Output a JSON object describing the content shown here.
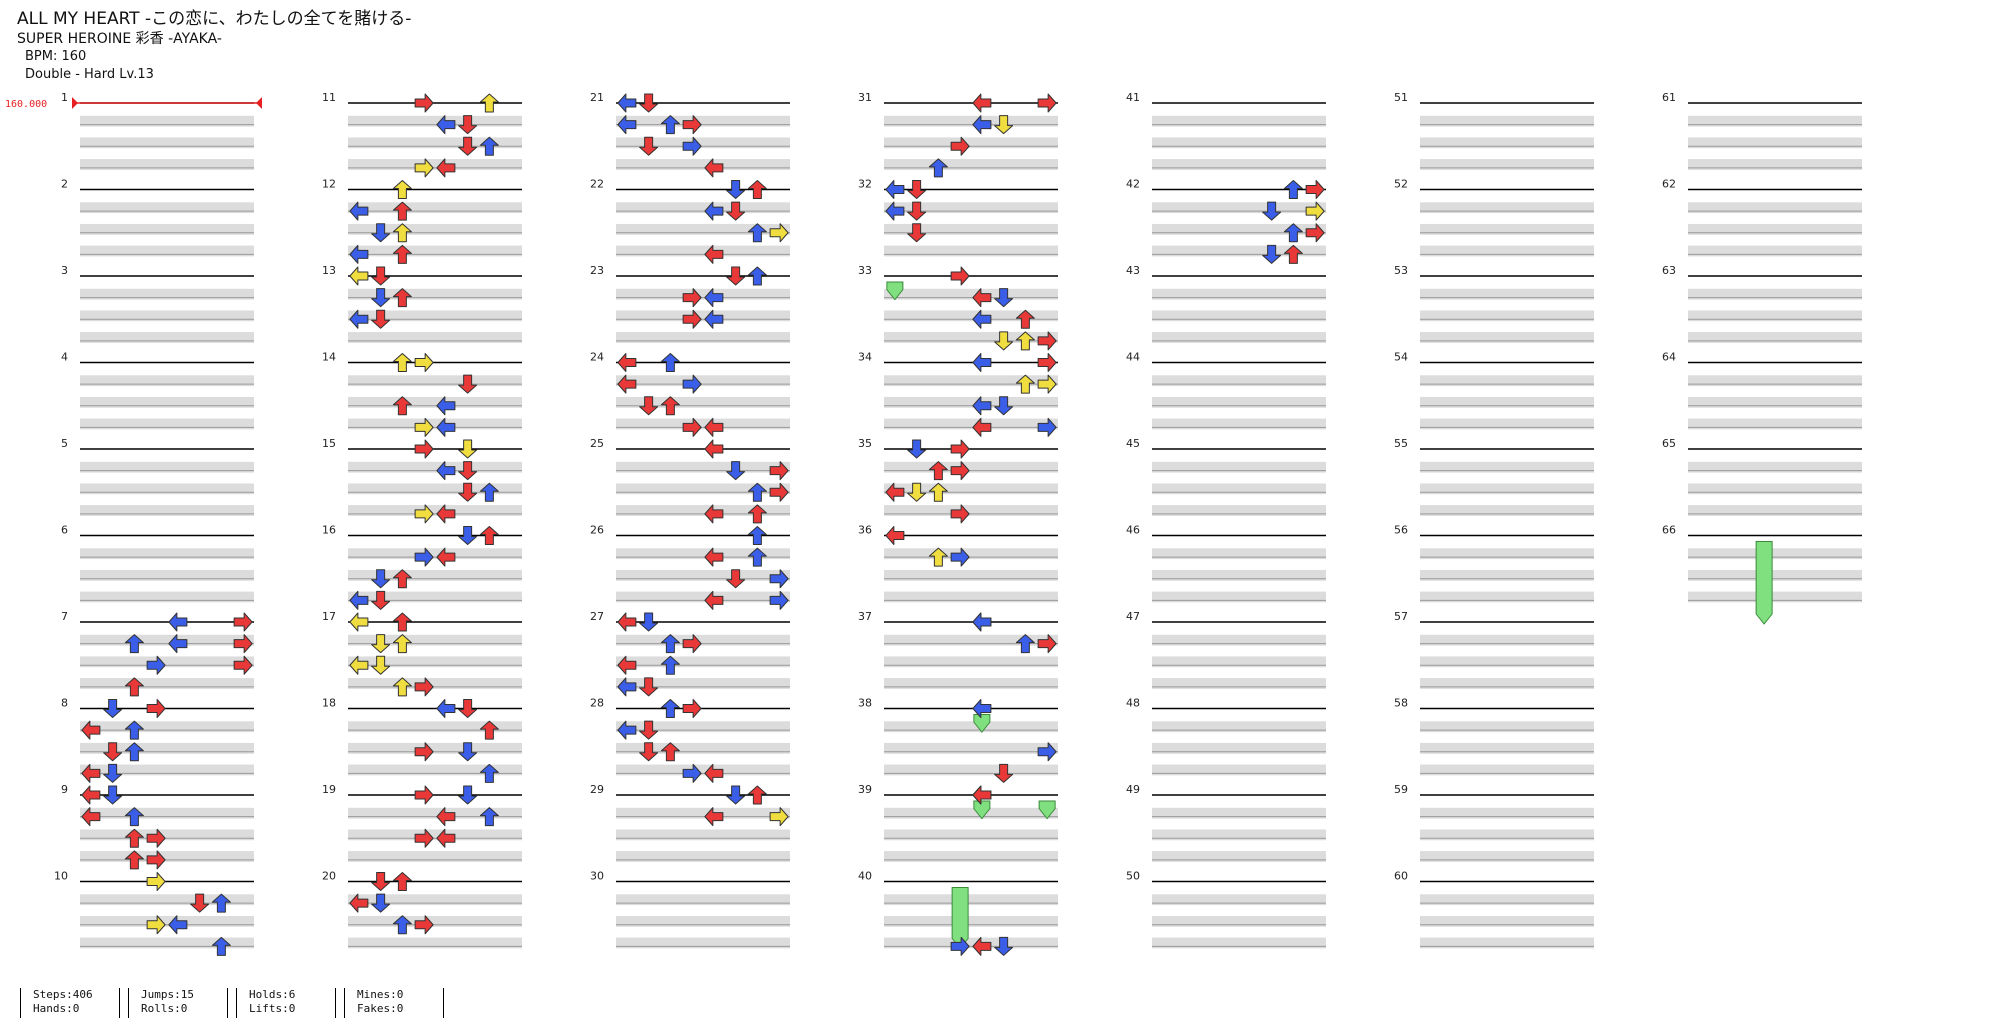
{
  "song": {
    "title": "ALL MY HEART -この恋に、わたしの全てを賭ける-",
    "artist": "SUPER HEROINE 彩香 -AYAKA-",
    "bpm_text": "BPM: 160",
    "difficulty_text": "Double - Hard  Lv.13"
  },
  "bpm_marker": "160.000",
  "measure_numbers": [
    "1",
    "2",
    "3",
    "4",
    "5",
    "6",
    "7",
    "8",
    "9",
    "10",
    "11",
    "12",
    "13",
    "14",
    "15",
    "16",
    "17",
    "18",
    "19",
    "20",
    "21",
    "22",
    "23",
    "24",
    "25",
    "26",
    "27",
    "28",
    "29",
    "30",
    "31",
    "32",
    "33",
    "34",
    "35",
    "36",
    "37",
    "38",
    "39",
    "40",
    "41",
    "42",
    "43",
    "44",
    "45",
    "46",
    "47",
    "48",
    "49",
    "50",
    "51",
    "52",
    "53",
    "54",
    "55",
    "56",
    "57",
    "58",
    "59",
    "60",
    "61",
    "62",
    "63",
    "64",
    "65",
    "66"
  ],
  "colors": {
    "quarter": "#e83838",
    "eighth": "#3a5ee8",
    "sixteenth": "#f0de40",
    "hold": "#80e080",
    "bar_fill": "#dcdcdc",
    "bpm": "#e62020"
  },
  "stats": [
    {
      "top": "Steps:406",
      "bottom": "Hands:0"
    },
    {
      "top": "Jumps:15",
      "bottom": "Rolls:0"
    },
    {
      "top": "Holds:6",
      "bottom": "Lifts:0"
    },
    {
      "top": "Mines:0",
      "bottom": "Fakes:0"
    }
  ],
  "notes": [
    [
      7,
      0,
      7,
      "quarter"
    ],
    [
      7,
      0,
      4,
      "eighth"
    ],
    [
      7,
      1,
      7,
      "quarter"
    ],
    [
      7,
      1,
      4,
      "eighth"
    ],
    [
      7,
      2,
      7,
      "quarter"
    ],
    [
      7,
      1,
      2,
      "eighth"
    ],
    [
      7,
      2,
      3,
      "eighth"
    ],
    [
      7,
      3,
      2,
      "quarter"
    ],
    [
      8,
      0,
      3,
      "quarter"
    ],
    [
      8,
      0,
      1,
      "eighth"
    ],
    [
      8,
      1,
      0,
      "quarter"
    ],
    [
      8,
      1,
      2,
      "eighth"
    ],
    [
      8,
      2,
      1,
      "quarter"
    ],
    [
      8,
      2,
      2,
      "eighth"
    ],
    [
      8,
      3,
      1,
      "eighth"
    ],
    [
      8,
      3,
      0,
      "quarter"
    ],
    [
      9,
      0,
      0,
      "quarter"
    ],
    [
      9,
      0,
      1,
      "eighth"
    ],
    [
      9,
      1,
      2,
      "eighth"
    ],
    [
      9,
      1,
      0,
      "quarter"
    ],
    [
      9,
      2,
      2,
      "quarter"
    ],
    [
      9,
      2,
      3,
      "quarter"
    ],
    [
      9,
      3,
      2,
      "quarter"
    ],
    [
      9,
      3,
      3,
      "quarter"
    ],
    [
      10,
      0,
      3,
      "sixteenth"
    ],
    [
      10,
      1,
      5,
      "quarter"
    ],
    [
      10,
      1,
      6,
      "eighth"
    ],
    [
      10,
      2,
      3,
      "sixteenth"
    ],
    [
      10,
      2,
      4,
      "eighth"
    ],
    [
      10,
      3,
      6,
      "eighth"
    ],
    [
      11,
      0,
      3,
      "quarter"
    ],
    [
      11,
      0,
      6,
      "sixteenth"
    ],
    [
      11,
      1,
      5,
      "quarter"
    ],
    [
      11,
      1,
      4,
      "eighth"
    ],
    [
      11,
      2,
      5,
      "quarter"
    ],
    [
      11,
      2,
      6,
      "eighth"
    ],
    [
      11,
      3,
      4,
      "quarter"
    ],
    [
      11,
      3,
      3,
      "sixteenth"
    ],
    [
      12,
      0,
      2,
      "sixteenth"
    ],
    [
      12,
      1,
      0,
      "eighth"
    ],
    [
      12,
      1,
      2,
      "quarter"
    ],
    [
      12,
      2,
      1,
      "eighth"
    ],
    [
      12,
      2,
      2,
      "sixteenth"
    ],
    [
      12,
      3,
      0,
      "eighth"
    ],
    [
      12,
      3,
      2,
      "quarter"
    ],
    [
      13,
      0,
      0,
      "sixteenth"
    ],
    [
      13,
      0,
      1,
      "quarter"
    ],
    [
      13,
      1,
      1,
      "eighth"
    ],
    [
      13,
      1,
      2,
      "quarter"
    ],
    [
      13,
      2,
      0,
      "eighth"
    ],
    [
      13,
      2,
      1,
      "quarter"
    ],
    [
      14,
      0,
      2,
      "sixteenth"
    ],
    [
      14,
      0,
      3,
      "sixteenth"
    ],
    [
      14,
      1,
      5,
      "quarter"
    ],
    [
      14,
      2,
      2,
      "quarter"
    ],
    [
      14,
      2,
      4,
      "eighth"
    ],
    [
      14,
      3,
      3,
      "sixteenth"
    ],
    [
      14,
      3,
      4,
      "eighth"
    ],
    [
      15,
      0,
      3,
      "quarter"
    ],
    [
      15,
      0,
      5,
      "sixteenth"
    ],
    [
      15,
      1,
      4,
      "eighth"
    ],
    [
      15,
      1,
      5,
      "quarter"
    ],
    [
      15,
      2,
      5,
      "quarter"
    ],
    [
      15,
      2,
      6,
      "eighth"
    ],
    [
      15,
      3,
      3,
      "sixteenth"
    ],
    [
      15,
      3,
      4,
      "quarter"
    ],
    [
      16,
      0,
      6,
      "quarter"
    ],
    [
      16,
      0,
      5,
      "eighth"
    ],
    [
      16,
      1,
      4,
      "quarter"
    ],
    [
      16,
      1,
      3,
      "eighth"
    ],
    [
      16,
      2,
      2,
      "quarter"
    ],
    [
      16,
      2,
      1,
      "eighth"
    ],
    [
      16,
      3,
      1,
      "quarter"
    ],
    [
      16,
      3,
      0,
      "eighth"
    ],
    [
      17,
      0,
      0,
      "sixteenth"
    ],
    [
      17,
      0,
      2,
      "quarter"
    ],
    [
      17,
      1,
      1,
      "sixteenth"
    ],
    [
      17,
      1,
      2,
      "sixteenth"
    ],
    [
      17,
      2,
      0,
      "sixteenth"
    ],
    [
      17,
      2,
      1,
      "sixteenth"
    ],
    [
      17,
      3,
      2,
      "sixteenth"
    ],
    [
      17,
      3,
      3,
      "quarter"
    ],
    [
      18,
      0,
      4,
      "eighth"
    ],
    [
      18,
      0,
      5,
      "quarter"
    ],
    [
      18,
      1,
      6,
      "quarter"
    ],
    [
      18,
      2,
      3,
      "quarter"
    ],
    [
      18,
      2,
      5,
      "eighth"
    ],
    [
      18,
      3,
      6,
      "eighth"
    ],
    [
      19,
      0,
      3,
      "quarter"
    ],
    [
      19,
      0,
      5,
      "eighth"
    ],
    [
      19,
      1,
      4,
      "quarter"
    ],
    [
      19,
      1,
      6,
      "eighth"
    ],
    [
      19,
      2,
      4,
      "quarter"
    ],
    [
      19,
      2,
      3,
      "quarter"
    ],
    [
      20,
      0,
      1,
      "quarter"
    ],
    [
      20,
      0,
      2,
      "quarter"
    ],
    [
      20,
      1,
      0,
      "quarter"
    ],
    [
      20,
      1,
      1,
      "eighth"
    ],
    [
      20,
      2,
      2,
      "eighth"
    ],
    [
      20,
      2,
      3,
      "quarter"
    ],
    [
      21,
      0,
      1,
      "quarter"
    ],
    [
      21,
      0,
      0,
      "eighth"
    ],
    [
      21,
      1,
      2,
      "eighth"
    ],
    [
      21,
      1,
      3,
      "quarter"
    ],
    [
      21,
      1,
      0,
      "eighth"
    ],
    [
      21,
      2,
      1,
      "quarter"
    ],
    [
      21,
      2,
      3,
      "eighth"
    ],
    [
      21,
      3,
      4,
      "quarter"
    ],
    [
      22,
      0,
      5,
      "eighth"
    ],
    [
      22,
      0,
      6,
      "quarter"
    ],
    [
      22,
      1,
      4,
      "eighth"
    ],
    [
      22,
      1,
      5,
      "quarter"
    ],
    [
      22,
      2,
      6,
      "eighth"
    ],
    [
      22,
      2,
      7,
      "sixteenth"
    ],
    [
      22,
      3,
      4,
      "quarter"
    ],
    [
      23,
      0,
      5,
      "quarter"
    ],
    [
      23,
      0,
      6,
      "eighth"
    ],
    [
      23,
      1,
      4,
      "eighth"
    ],
    [
      23,
      1,
      3,
      "quarter"
    ],
    [
      23,
      2,
      4,
      "eighth"
    ],
    [
      23,
      2,
      3,
      "quarter"
    ],
    [
      24,
      0,
      0,
      "quarter"
    ],
    [
      24,
      0,
      2,
      "eighth"
    ],
    [
      24,
      1,
      3,
      "eighth"
    ],
    [
      24,
      1,
      0,
      "quarter"
    ],
    [
      24,
      2,
      1,
      "quarter"
    ],
    [
      24,
      2,
      2,
      "quarter"
    ],
    [
      24,
      3,
      3,
      "quarter"
    ],
    [
      24,
      3,
      4,
      "quarter"
    ],
    [
      25,
      0,
      4,
      "quarter"
    ],
    [
      25,
      1,
      5,
      "eighth"
    ],
    [
      25,
      1,
      7,
      "quarter"
    ],
    [
      25,
      2,
      7,
      "quarter"
    ],
    [
      25,
      2,
      6,
      "eighth"
    ],
    [
      25,
      3,
      4,
      "quarter"
    ],
    [
      25,
      3,
      6,
      "quarter"
    ],
    [
      26,
      0,
      6,
      "eighth"
    ],
    [
      26,
      1,
      4,
      "quarter"
    ],
    [
      26,
      1,
      6,
      "eighth"
    ],
    [
      26,
      2,
      5,
      "quarter"
    ],
    [
      26,
      2,
      7,
      "eighth"
    ],
    [
      26,
      3,
      4,
      "quarter"
    ],
    [
      26,
      3,
      7,
      "eighth"
    ],
    [
      27,
      0,
      0,
      "quarter"
    ],
    [
      27,
      0,
      1,
      "eighth"
    ],
    [
      27,
      1,
      2,
      "eighth"
    ],
    [
      27,
      1,
      3,
      "quarter"
    ],
    [
      27,
      2,
      0,
      "quarter"
    ],
    [
      27,
      2,
      2,
      "eighth"
    ],
    [
      27,
      3,
      0,
      "eighth"
    ],
    [
      27,
      3,
      1,
      "quarter"
    ],
    [
      28,
      0,
      2,
      "eighth"
    ],
    [
      28,
      0,
      3,
      "quarter"
    ],
    [
      28,
      1,
      1,
      "quarter"
    ],
    [
      28,
      1,
      0,
      "eighth"
    ],
    [
      28,
      2,
      1,
      "quarter"
    ],
    [
      28,
      2,
      2,
      "quarter"
    ],
    [
      28,
      3,
      3,
      "eighth"
    ],
    [
      28,
      3,
      4,
      "quarter"
    ],
    [
      29,
      0,
      5,
      "eighth"
    ],
    [
      29,
      0,
      6,
      "quarter"
    ],
    [
      29,
      1,
      4,
      "quarter"
    ],
    [
      29,
      1,
      7,
      "sixteenth"
    ],
    [
      31,
      0,
      4,
      "quarter"
    ],
    [
      31,
      0,
      7,
      "quarter"
    ],
    [
      31,
      1,
      5,
      "sixteenth"
    ],
    [
      31,
      1,
      4,
      "eighth"
    ],
    [
      31,
      2,
      3,
      "quarter"
    ],
    [
      31,
      3,
      2,
      "eighth"
    ],
    [
      32,
      0,
      0,
      "eighth"
    ],
    [
      32,
      0,
      1,
      "quarter"
    ],
    [
      32,
      1,
      0,
      "eighth"
    ],
    [
      32,
      1,
      1,
      "quarter"
    ],
    [
      32,
      2,
      1,
      "quarter"
    ],
    [
      33,
      0,
      3,
      "quarter"
    ],
    [
      33,
      1,
      4,
      "quarter"
    ],
    [
      33,
      1,
      5,
      "eighth"
    ],
    [
      33,
      2,
      6,
      "quarter"
    ],
    [
      33,
      2,
      4,
      "eighth"
    ],
    [
      33,
      3,
      5,
      "sixteenth"
    ],
    [
      33,
      3,
      6,
      "sixteenth"
    ],
    [
      33,
      3,
      7,
      "quarter"
    ],
    [
      34,
      0,
      4,
      "eighth"
    ],
    [
      34,
      0,
      7,
      "quarter"
    ],
    [
      34,
      1,
      6,
      "sixteenth"
    ],
    [
      34,
      1,
      7,
      "sixteenth"
    ],
    [
      34,
      2,
      4,
      "eighth"
    ],
    [
      34,
      2,
      5,
      "eighth"
    ],
    [
      34,
      3,
      7,
      "eighth"
    ],
    [
      34,
      3,
      4,
      "quarter"
    ],
    [
      35,
      0,
      3,
      "quarter"
    ],
    [
      35,
      0,
      1,
      "eighth"
    ],
    [
      35,
      1,
      2,
      "quarter"
    ],
    [
      35,
      1,
      3,
      "quarter"
    ],
    [
      35,
      2,
      0,
      "quarter"
    ],
    [
      35,
      2,
      1,
      "sixteenth"
    ],
    [
      35,
      2,
      2,
      "sixteenth"
    ],
    [
      35,
      3,
      3,
      "quarter"
    ],
    [
      36,
      0,
      0,
      "quarter"
    ],
    [
      36,
      1,
      2,
      "sixteenth"
    ],
    [
      36,
      1,
      3,
      "eighth"
    ],
    [
      37,
      0,
      4,
      "quarter"
    ],
    [
      37,
      0,
      4,
      "eighth"
    ],
    [
      37,
      1,
      6,
      "eighth"
    ],
    [
      37,
      1,
      7,
      "quarter"
    ],
    [
      38,
      0,
      4,
      "eighth"
    ],
    [
      38,
      2,
      7,
      "eighth"
    ],
    [
      38,
      3,
      5,
      "quarter"
    ],
    [
      39,
      0,
      4,
      "quarter"
    ],
    [
      39,
      0,
      4,
      "quarter"
    ],
    [
      40,
      3,
      3,
      "eighth"
    ],
    [
      40,
      3,
      4,
      "quarter"
    ],
    [
      40,
      3,
      5,
      "eighth"
    ],
    [
      42,
      0,
      6,
      "eighth"
    ],
    [
      42,
      0,
      7,
      "quarter"
    ],
    [
      42,
      1,
      5,
      "eighth"
    ],
    [
      42,
      1,
      7,
      "sixteenth"
    ],
    [
      42,
      2,
      6,
      "eighth"
    ],
    [
      42,
      2,
      7,
      "quarter"
    ],
    [
      42,
      3,
      5,
      "eighth"
    ],
    [
      42,
      3,
      6,
      "quarter"
    ]
  ]
}
